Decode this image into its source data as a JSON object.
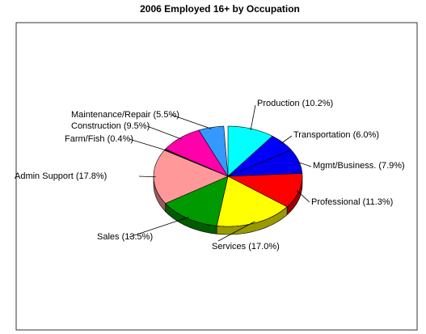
{
  "chart_data": {
    "type": "pie",
    "title": "2006 Employed 16+ by Occupation",
    "categories": [
      "Production",
      "Transportation",
      "Mgmt/Business.",
      "Professional",
      "Services",
      "Sales",
      "Admin Support",
      "Farm/Fish",
      "Construction",
      "Maintenance/Repair"
    ],
    "values": [
      10.2,
      6.0,
      7.9,
      11.3,
      17.0,
      13.5,
      17.8,
      0.4,
      9.5,
      5.5
    ],
    "value_labels": [
      "(10.2%)",
      "(6.0%)",
      "(7.9%)",
      "(11.3%)",
      "(17.0%)",
      "(13.5%)",
      "(17.8%)",
      "(0.4%)",
      "(9.5%)",
      "(5.5%)"
    ],
    "colors": [
      "#00ffff",
      "#0000ff",
      "#0000ee",
      "#ff0000",
      "#ffff00",
      "#009900",
      "#ff9999",
      "#222222",
      "#ff00aa",
      "#3399ff"
    ]
  }
}
